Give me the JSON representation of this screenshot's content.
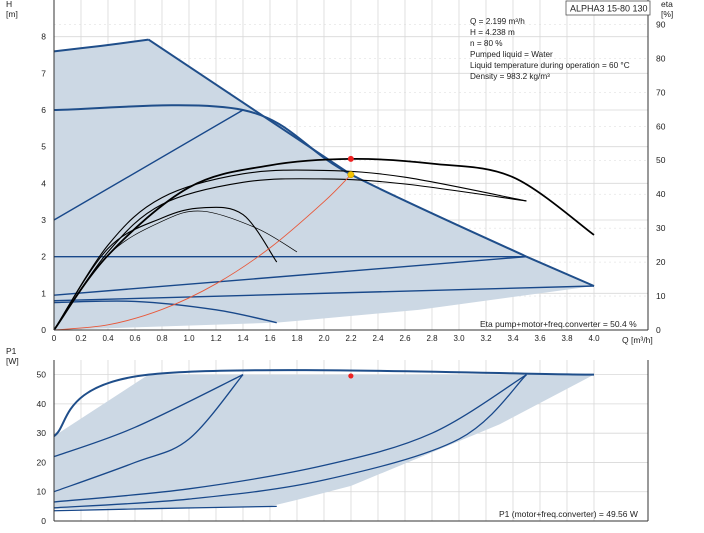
{
  "title_box": "ALPHA3 15-80 130",
  "info_lines": [
    "Q = 2.199 m³/h",
    "H = 4.238 m",
    "n = 80 %",
    "Pumped liquid = Water",
    "Liquid temperature during operation = 60 °C",
    "Density = 983.2 kg/m³"
  ],
  "colors": {
    "envelope_fill": "#ccd8e4",
    "envelope_line": "#1f4e8a",
    "curve_line": "#18488a",
    "eta_line": "#000000",
    "system_curve": "#e8583a",
    "duty_point_red": "#ee2222",
    "duty_point_yellow": "#f5c400",
    "grid": "#d8d8d8"
  },
  "chart_data": [
    {
      "type": "line",
      "name": "head",
      "ylabel_top": "H",
      "yunit": "[m]",
      "y2label_top": "eta",
      "y2unit": "[%]",
      "xlabel": "Q [m³/h]",
      "xlim": [
        0,
        4.4
      ],
      "ylim": [
        0,
        9
      ],
      "y2lim": [
        0,
        97.2
      ],
      "xticks": [
        "0",
        "0.2",
        "0.4",
        "0.6",
        "0.8",
        "1.0",
        "1.2",
        "1.4",
        "1.6",
        "1.8",
        "2.0",
        "2.2",
        "2.4",
        "2.6",
        "2.8",
        "3.0",
        "3.2",
        "3.4",
        "3.6",
        "3.8",
        "4.0"
      ],
      "yticks": [
        "0",
        "1",
        "2",
        "3",
        "4",
        "5",
        "6",
        "7",
        "8"
      ],
      "y2ticks": [
        "0",
        "10",
        "20",
        "30",
        "40",
        "50",
        "60",
        "70",
        "80",
        "90"
      ],
      "grid": true,
      "envelope": [
        [
          0,
          0
        ],
        [
          0,
          7.6
        ],
        [
          0.35,
          7.75
        ],
        [
          0.7,
          7.92
        ],
        [
          2.2,
          4.24
        ],
        [
          3.5,
          2
        ],
        [
          4.0,
          1.2
        ],
        [
          2.7,
          0.55
        ],
        [
          1.8,
          0.25
        ],
        [
          1.65,
          0.2
        ],
        [
          0,
          0
        ]
      ],
      "curves": [
        [
          [
            0,
            6.0
          ],
          [
            1.4,
            6.0
          ],
          [
            2.2,
            4.24
          ],
          [
            3.5,
            2.0
          ]
        ],
        [
          [
            0,
            3.0
          ],
          [
            1.4,
            6.0
          ]
        ],
        [
          [
            0,
            2.0
          ],
          [
            3.5,
            2.0
          ]
        ],
        [
          [
            0,
            0.95
          ],
          [
            3.5,
            2.0
          ]
        ],
        [
          [
            0,
            0.75
          ],
          [
            0.6,
            0.78
          ],
          [
            1.2,
            0.55
          ],
          [
            1.65,
            0.2
          ]
        ],
        [
          [
            0,
            0.8
          ],
          [
            4.0,
            1.2
          ]
        ]
      ],
      "eta_curves": [
        [
          [
            0,
            0
          ],
          [
            0.4,
            22
          ],
          [
            1.0,
            42
          ],
          [
            1.6,
            48.5
          ],
          [
            2.2,
            50.4
          ],
          [
            2.8,
            49
          ],
          [
            3.4,
            45
          ],
          [
            4.0,
            28
          ]
        ],
        [
          [
            0,
            0
          ],
          [
            0.4,
            25
          ],
          [
            0.8,
            39
          ],
          [
            1.4,
            46
          ],
          [
            2.0,
            47
          ],
          [
            2.6,
            45
          ],
          [
            3.5,
            38
          ]
        ],
        [
          [
            0,
            0
          ],
          [
            0.4,
            23
          ],
          [
            0.8,
            37
          ],
          [
            1.4,
            43.5
          ],
          [
            2.0,
            44.5
          ],
          [
            2.6,
            43
          ],
          [
            3.5,
            38
          ]
        ],
        [
          [
            0,
            0
          ],
          [
            0.4,
            24
          ],
          [
            0.8,
            33
          ],
          [
            1.1,
            36
          ],
          [
            1.4,
            34
          ],
          [
            1.65,
            20
          ]
        ],
        [
          [
            0,
            0
          ],
          [
            0.4,
            22
          ],
          [
            0.8,
            32
          ],
          [
            1.1,
            35
          ],
          [
            1.5,
            30
          ],
          [
            1.8,
            23
          ]
        ]
      ],
      "system_curve": [
        [
          0,
          0
        ],
        [
          0.4,
          0.14
        ],
        [
          0.8,
          0.56
        ],
        [
          1.2,
          1.26
        ],
        [
          1.6,
          2.24
        ],
        [
          2.0,
          3.5
        ],
        [
          2.2,
          4.24
        ]
      ],
      "duty_point": {
        "Q": 2.199,
        "H": 4.238,
        "eta": 50.4
      },
      "annotation": "Eta pump+motor+freq.converter = 50.4 %"
    },
    {
      "type": "line",
      "name": "power",
      "ylabel_top": "P1",
      "yunit": "[W]",
      "xlim": [
        0,
        4.4
      ],
      "ylim": [
        0,
        55
      ],
      "yticks": [
        "0",
        "10",
        "20",
        "30",
        "40",
        "50"
      ],
      "grid": true,
      "envelope": [
        [
          0,
          29
        ],
        [
          0.7,
          50
        ],
        [
          4.0,
          50
        ],
        [
          3.3,
          33
        ],
        [
          2.2,
          12
        ],
        [
          1.8,
          7.2
        ],
        [
          1.6,
          5
        ],
        [
          0,
          4
        ],
        [
          0,
          29
        ]
      ],
      "curves": [
        [
          [
            0,
            29
          ],
          [
            0.7,
            50
          ],
          [
            4.0,
            50
          ]
        ],
        [
          [
            0,
            22
          ],
          [
            0.6,
            32
          ],
          [
            1.4,
            50
          ]
        ],
        [
          [
            0,
            10
          ],
          [
            0.6,
            20
          ],
          [
            1.0,
            28
          ],
          [
            1.4,
            50
          ]
        ],
        [
          [
            0,
            6.5
          ],
          [
            1.0,
            11
          ],
          [
            2.0,
            19
          ],
          [
            2.8,
            30
          ],
          [
            3.5,
            50
          ]
        ],
        [
          [
            0,
            4.5
          ],
          [
            1.0,
            7.5
          ],
          [
            2.0,
            14
          ],
          [
            3.0,
            28
          ],
          [
            3.5,
            50
          ]
        ],
        [
          [
            0,
            3.5
          ],
          [
            0.8,
            4.3
          ],
          [
            1.65,
            5
          ]
        ]
      ],
      "duty_point": {
        "Q": 2.199,
        "P1": 49.56
      },
      "annotation": "P1 (motor+freq.converter) = 49.56 W"
    }
  ]
}
